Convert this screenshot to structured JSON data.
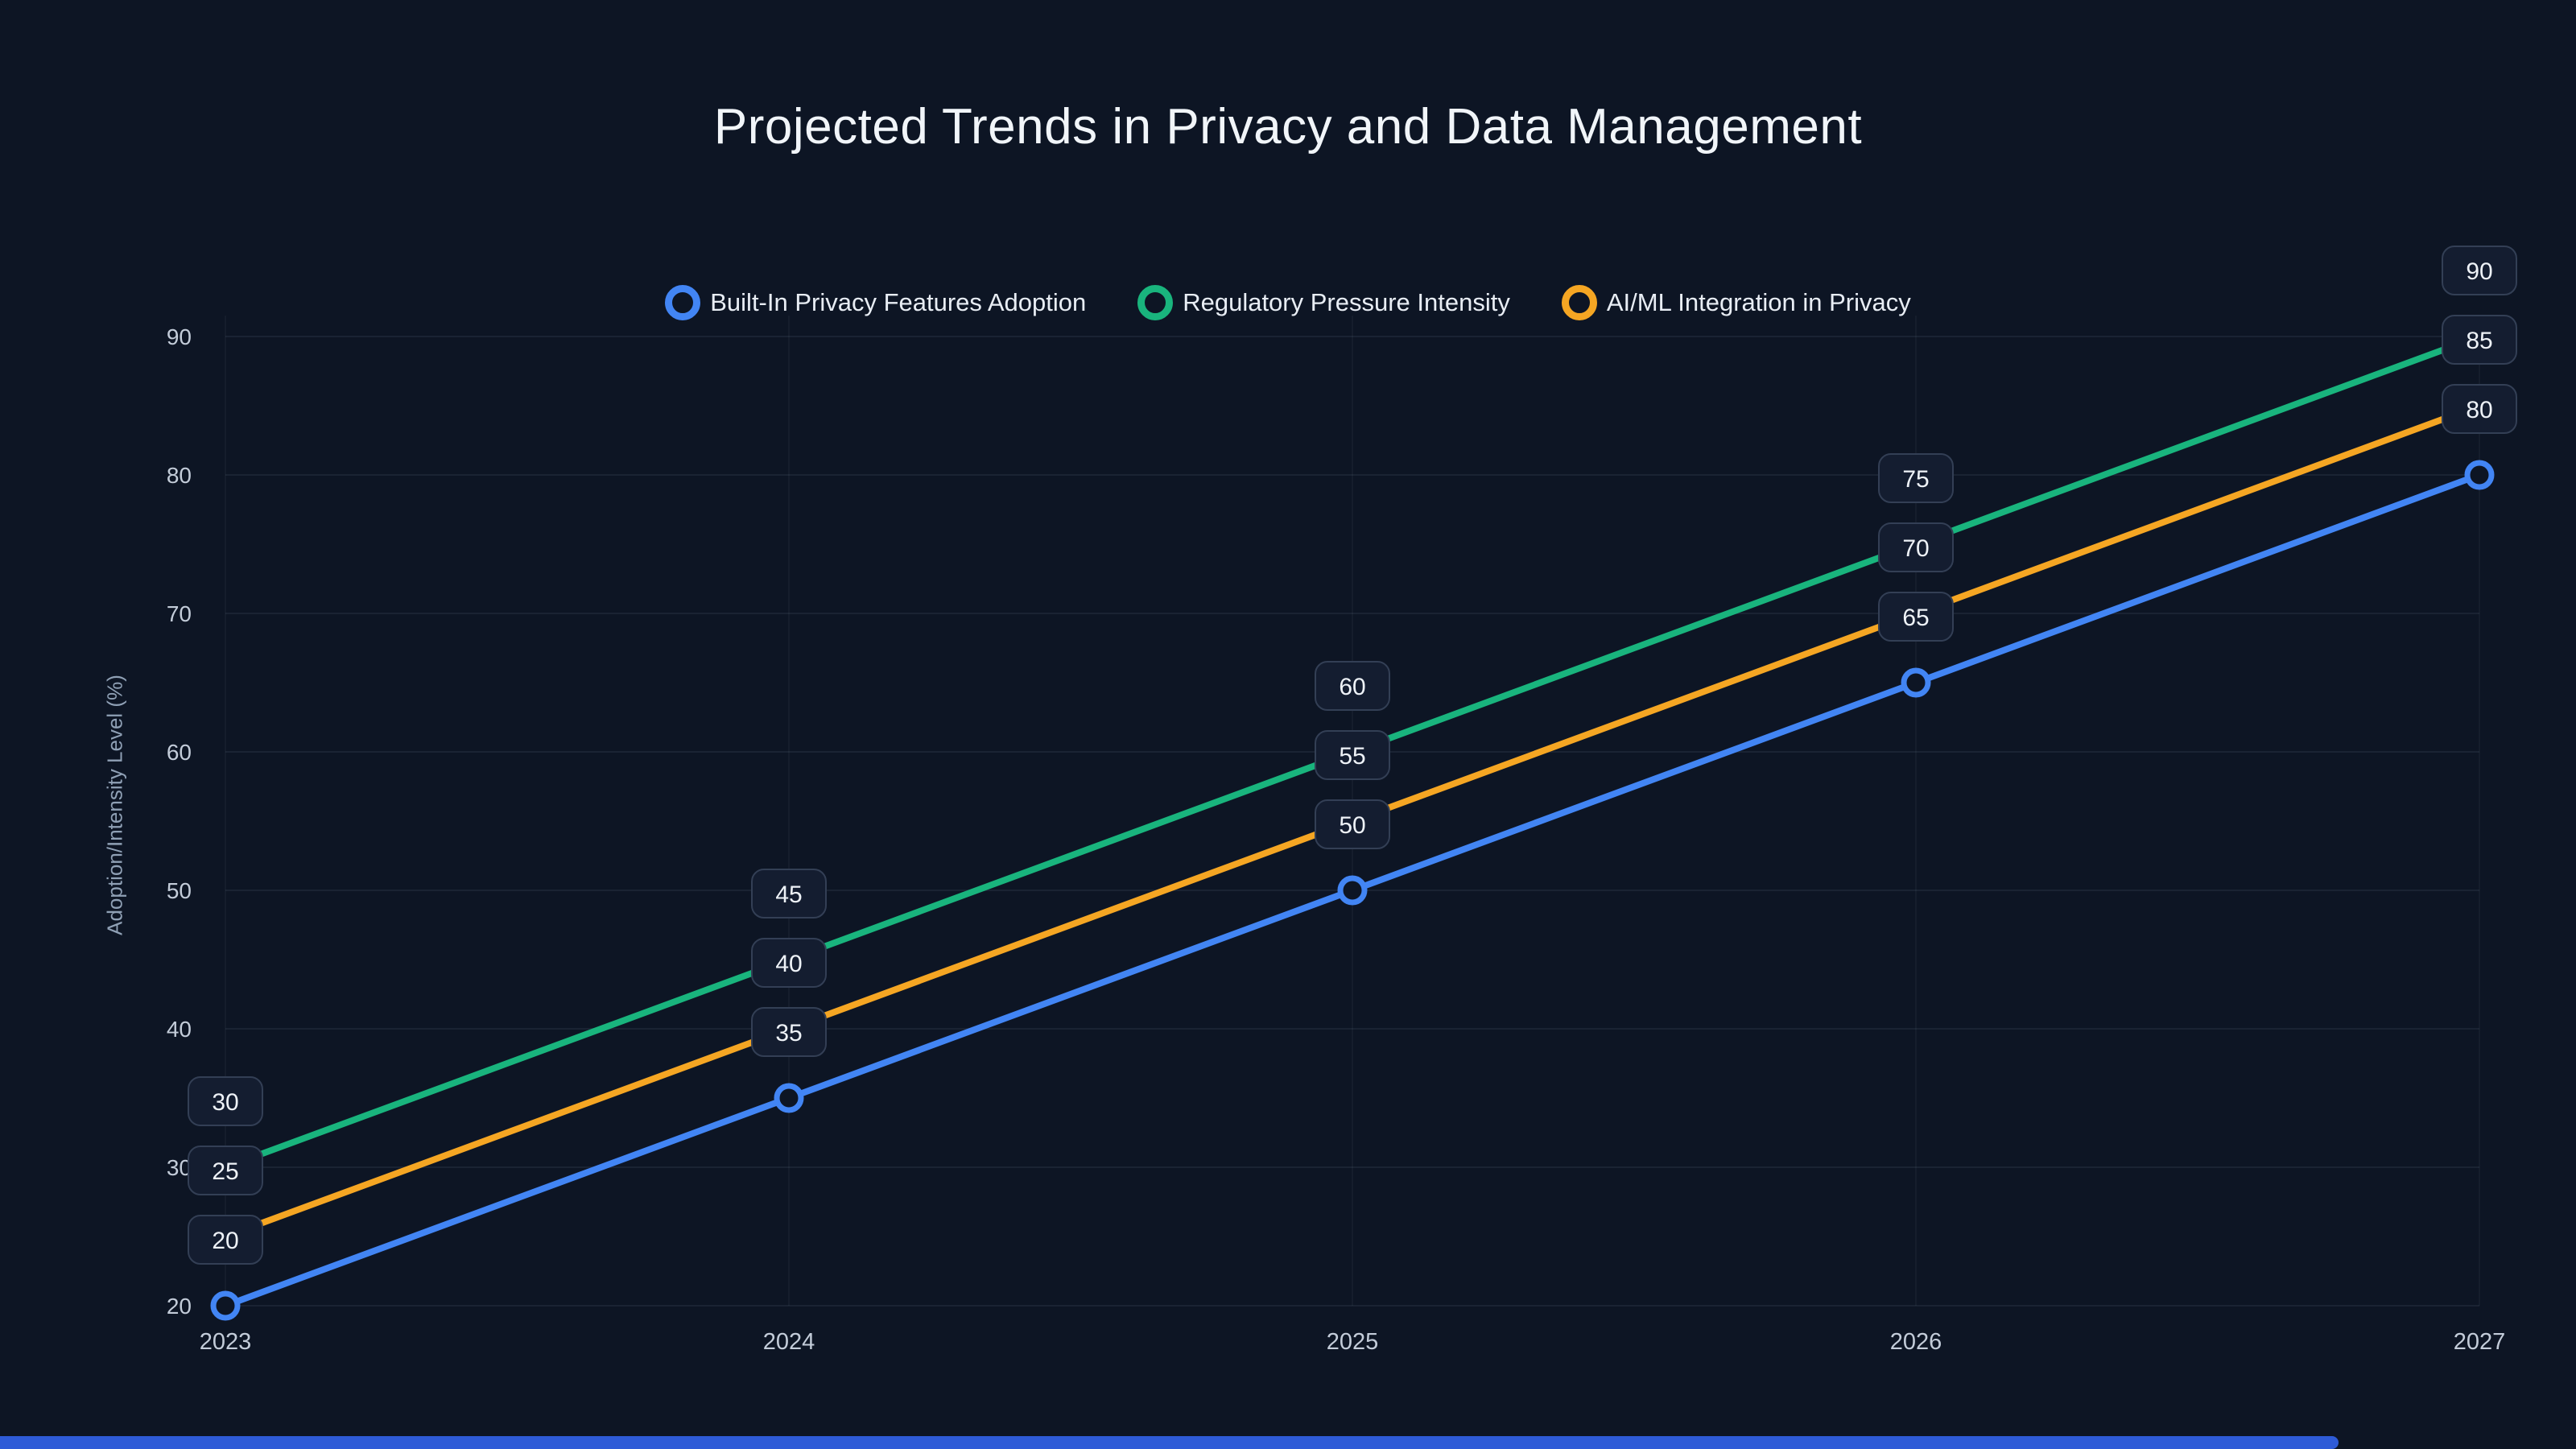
{
  "page": {
    "title": "Projected Trends in Privacy and Data Management"
  },
  "colors": {
    "background": "#0d1524",
    "grid": "rgba(148,163,184,0.10)",
    "tick_text": "#c3ccd9",
    "badge_fill": "#141d30",
    "badge_border": "#333f55",
    "badge_text": "#eef2f7",
    "bottom_bar": "#2e5bd7",
    "series_blue": "#4285f4",
    "series_green": "#19b47d",
    "series_orange": "#f5a623"
  },
  "chart_data": {
    "type": "line",
    "title": "Projected Trends in Privacy and Data Management",
    "xlabel": "",
    "ylabel": "Adoption/Intensity Level (%)",
    "x": [
      2023,
      2024,
      2025,
      2026,
      2027
    ],
    "ylim": [
      20,
      90
    ],
    "yticks": [
      20,
      30,
      40,
      50,
      60,
      70,
      80,
      90
    ],
    "grid": true,
    "legend_position": "top-center",
    "data_labels": true,
    "series": [
      {
        "name": "Built-In Privacy Features Adoption",
        "color": "#4285f4",
        "values": [
          20,
          35,
          50,
          65,
          80
        ],
        "markers": true
      },
      {
        "name": "Regulatory Pressure Intensity",
        "color": "#19b47d",
        "values": [
          30,
          45,
          60,
          75,
          90
        ],
        "markers": false
      },
      {
        "name": "AI/ML Integration in Privacy",
        "color": "#f5a623",
        "values": [
          25,
          40,
          55,
          70,
          85
        ],
        "markers": false
      }
    ]
  }
}
